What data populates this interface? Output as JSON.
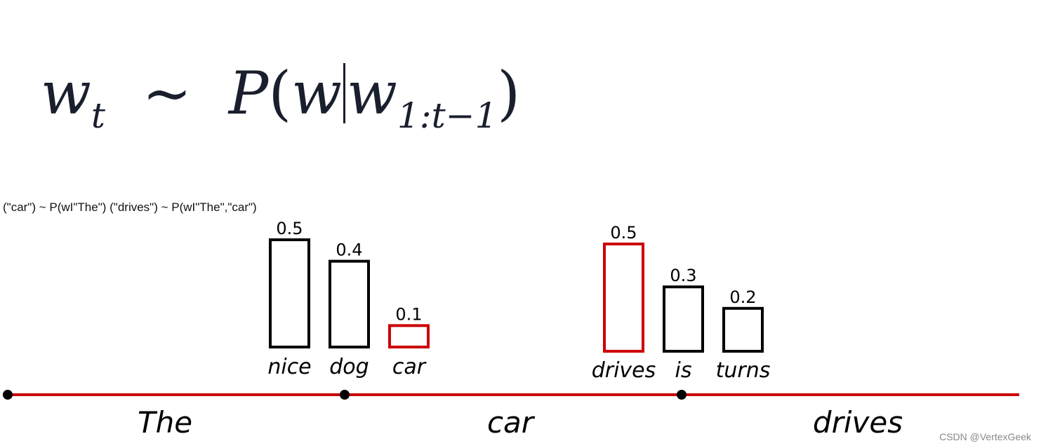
{
  "formula": {
    "lhs": "w",
    "lhs_sub": "t",
    "relation": "~",
    "func": "P",
    "open": "(",
    "var": "w",
    "given": "w",
    "given_sub": "1:t−1",
    "close": ")"
  },
  "caption": "(\"car\")  ~ P(wI\"The\") (\"drives\")  ~ P(wI\"The\",\"car\")",
  "colors": {
    "selected": "#cc0000",
    "normal": "#000000",
    "timeline": "#cc0000"
  },
  "timeline": {
    "tokens": [
      "The",
      "car",
      "drives"
    ]
  },
  "groups": [
    {
      "bars": [
        {
          "word": "nice",
          "prob": 0.5,
          "label": "0.5",
          "selected": false
        },
        {
          "word": "dog",
          "prob": 0.4,
          "label": "0.4",
          "selected": false
        },
        {
          "word": "car",
          "prob": 0.1,
          "label": "0.1",
          "selected": true
        }
      ]
    },
    {
      "bars": [
        {
          "word": "drives",
          "prob": 0.5,
          "label": "0.5",
          "selected": true
        },
        {
          "word": "is",
          "prob": 0.3,
          "label": "0.3",
          "selected": false
        },
        {
          "word": "turns",
          "prob": 0.2,
          "label": "0.2",
          "selected": false
        }
      ]
    }
  ],
  "watermark": "CSDN @VertexGeek"
}
